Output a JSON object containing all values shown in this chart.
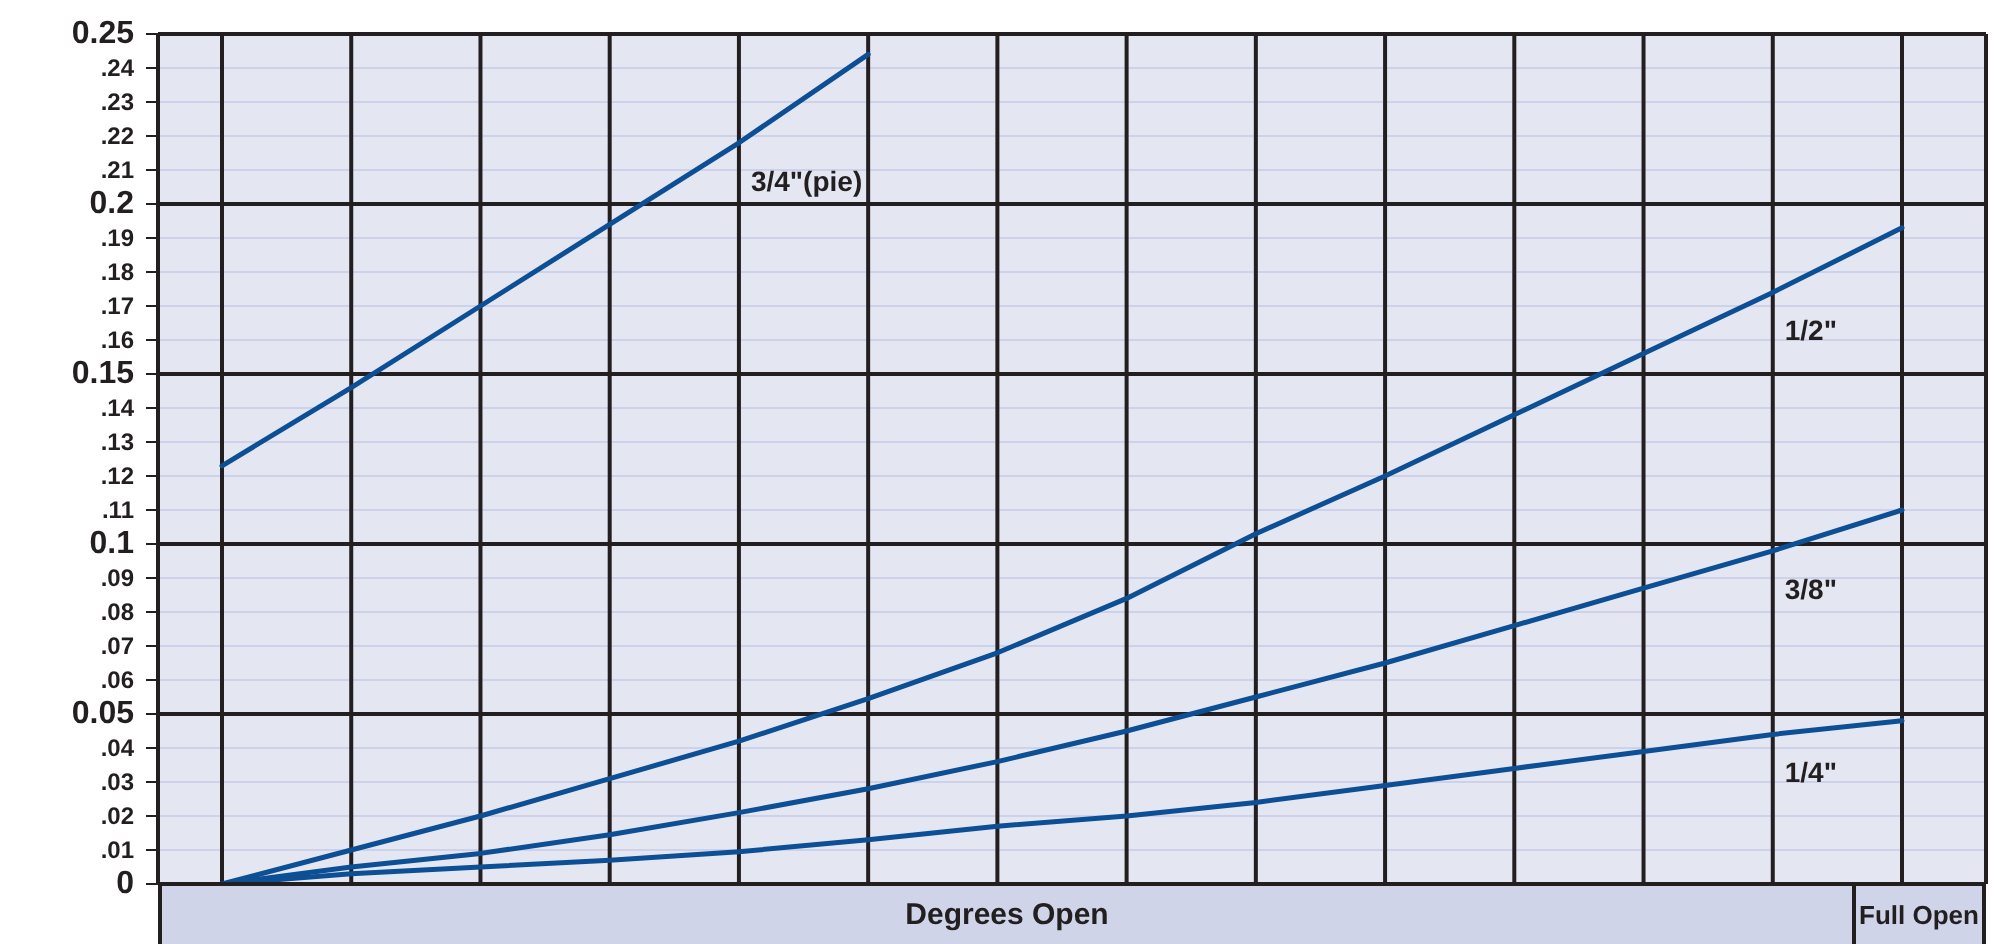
{
  "chart_data": {
    "type": "line",
    "xlabel": "Degrees Open",
    "annotations": [
      "Full Open"
    ],
    "categories": [
      null,
      null,
      null,
      null,
      null,
      null,
      null,
      null,
      null,
      null,
      null,
      null,
      null,
      null
    ],
    "series": [
      {
        "name": "3/4\"(pie)",
        "color": "#0d4f95",
        "values": [
          0.123,
          0.146,
          0.17,
          0.194,
          0.218,
          0.244,
          null,
          null,
          null,
          null,
          null,
          null,
          null,
          null
        ]
      },
      {
        "name": "1/2\"",
        "color": "#0d4f95",
        "values": [
          0,
          0.01,
          0.02,
          0.031,
          0.042,
          0.0545,
          0.068,
          0.084,
          0.103,
          0.12,
          0.138,
          0.156,
          0.174,
          0.193
        ]
      },
      {
        "name": "3/8\"",
        "color": "#0d4f95",
        "values": [
          0,
          0.005,
          0.009,
          0.0145,
          0.021,
          0.028,
          0.036,
          0.045,
          0.055,
          0.065,
          0.076,
          0.087,
          0.098,
          0.11
        ]
      },
      {
        "name": "1/4\"",
        "color": "#0d4f95",
        "values": [
          0,
          0.003,
          0.005,
          0.007,
          0.0095,
          0.013,
          0.017,
          0.02,
          0.024,
          0.029,
          0.034,
          0.039,
          0.044,
          0.048
        ]
      }
    ],
    "ylim": [
      0,
      0.25
    ],
    "yticks": [
      0,
      {
        "value": 0.01,
        "label": ".01"
      },
      {
        "value": 0.02,
        "label": ".02"
      },
      {
        "value": 0.03,
        "label": ".03"
      },
      {
        "value": 0.04,
        "label": ".04"
      },
      0.05,
      {
        "value": 0.06,
        "label": ".06"
      },
      {
        "value": 0.07,
        "label": ".07"
      },
      {
        "value": 0.08,
        "label": ".08"
      },
      {
        "value": 0.09,
        "label": ".09"
      },
      0.1,
      {
        "value": 0.11,
        "label": ".11"
      },
      {
        "value": 0.12,
        "label": ".12"
      },
      {
        "value": 0.13,
        "label": ".13"
      },
      {
        "value": 0.14,
        "label": ".14"
      },
      0.15,
      {
        "value": 0.16,
        "label": ".16"
      },
      {
        "value": 0.17,
        "label": ".17"
      },
      {
        "value": 0.18,
        "label": ".18"
      },
      {
        "value": 0.19,
        "label": ".19"
      },
      0.2,
      {
        "value": 0.21,
        "label": ".21"
      },
      {
        "value": 0.22,
        "label": ".22"
      },
      {
        "value": 0.23,
        "label": ".23"
      },
      {
        "value": 0.24,
        "label": ".24"
      },
      0.25
    ],
    "grid": true,
    "marker": "none",
    "line_style": "solid"
  }
}
